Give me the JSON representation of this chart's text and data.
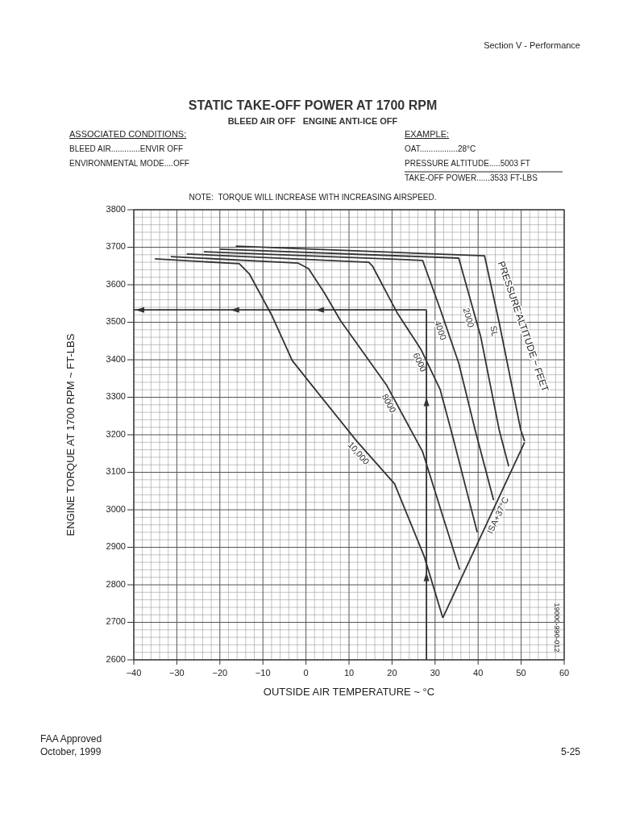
{
  "chart_data": {
    "type": "line",
    "title": "STATIC TAKE-OFF POWER AT 1700 RPM",
    "subtitle": "BLEED AIR OFF   ENGINE ANTI-ICE OFF",
    "xlabel": "OUTSIDE AIR TEMPERATURE ~ °C",
    "ylabel": "ENGINE TORQUE AT 1700 RPM ~ FT-LBS",
    "legend_title": "PRESSURE ALTITUDE ~ FEET",
    "xlim": [
      -40,
      60
    ],
    "xticks": [
      -40,
      -30,
      -20,
      -10,
      0,
      10,
      20,
      30,
      40,
      50,
      60
    ],
    "ylim": [
      2600,
      3800
    ],
    "yticks": [
      2600,
      2700,
      2800,
      2900,
      3000,
      3100,
      3200,
      3300,
      3400,
      3500,
      3600,
      3700,
      3800
    ],
    "grid": true,
    "ref_lines": [
      {
        "axis": "x",
        "value": 28,
        "color": "#333333"
      },
      {
        "axis": "y",
        "value": 3533,
        "color": "#333333"
      }
    ],
    "series": [
      {
        "name": "10,000",
        "color": "#333333",
        "x": [
          -35.1,
          -15.5,
          -13.1,
          -8.0,
          -3.2,
          1.3,
          11.8,
          20.6,
          27.5,
          31.8
        ],
        "values": [
          3669,
          3656,
          3628,
          3520,
          3398,
          3333,
          3183,
          3069,
          2875,
          2712
        ]
      },
      {
        "name": "8000",
        "color": "#333333",
        "x": [
          -31.4,
          -1.9,
          0.6,
          4.3,
          8.0,
          18.7,
          27.1,
          31.8,
          35.7
        ],
        "values": [
          3675,
          3658,
          3643,
          3578,
          3505,
          3333,
          3155,
          2983,
          2841
        ]
      },
      {
        "name": "6000",
        "color": "#333333",
        "x": [
          -27.7,
          14.6,
          15.5,
          21.1,
          26.7,
          31.2,
          34.2,
          39.8
        ],
        "values": [
          3682,
          3660,
          3649,
          3527,
          3428,
          3320,
          3191,
          2940
        ]
      },
      {
        "name": "4000",
        "color": "#333333",
        "x": [
          -23.7,
          27.1,
          31.2,
          35.5,
          39.3,
          43.6
        ],
        "values": [
          3688,
          3665,
          3535,
          3391,
          3213,
          3026
        ]
      },
      {
        "name": "2000",
        "color": "#333333",
        "x": [
          -20.0,
          35.5,
          40.6,
          44.9,
          47.1
        ],
        "values": [
          3695,
          3671,
          3462,
          3213,
          3116
        ]
      },
      {
        "name": "SL",
        "color": "#333333",
        "x": [
          -16.3,
          41.5,
          44.9,
          49.9,
          50.8
        ],
        "values": [
          3703,
          3677,
          3499,
          3213,
          3183
        ]
      },
      {
        "name": "ISA+37°C",
        "color": "#333333",
        "x": [
          31.8,
          50.8
        ],
        "values": [
          2712,
          3180
        ]
      }
    ],
    "annotations": [
      "ASSOCIATED CONDITIONS:",
      "BLEED AIR.............ENVIR OFF",
      "ENVIRONMENTAL MODE....OFF",
      "EXAMPLE:",
      "OAT.................28°C",
      "PRESSURE ALTITUDE.....5003 FT",
      "TAKE-OFF POWER......3533 FT-LBS",
      "NOTE:  TORQUE WILL INCREASE WITH INCREASING AIRSPEED.",
      "19000-990-012",
      "Section V - Performance",
      "FAA Approved",
      "October, 1999",
      "5-25"
    ]
  }
}
